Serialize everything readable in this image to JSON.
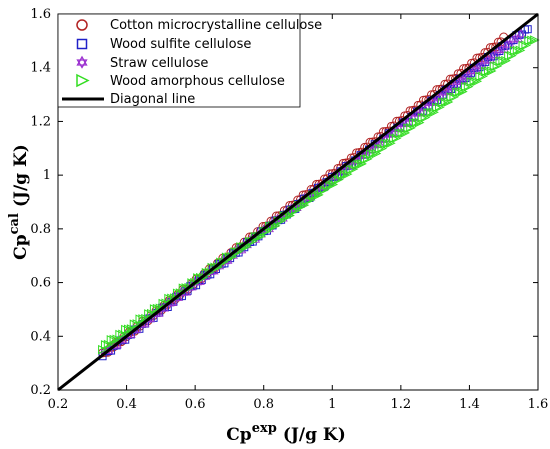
{
  "chart_data": {
    "type": "scatter",
    "title": "",
    "xlabel": {
      "base": "Cp",
      "sup": "exp",
      "unit": "(J/g K)"
    },
    "ylabel": {
      "base": "Cp",
      "sup": "cal",
      "unit": "(J/g K)"
    },
    "xlim": [
      0.2,
      1.6
    ],
    "ylim": [
      0.2,
      1.6
    ],
    "xticks": [
      "0.2",
      "0.4",
      "0.6",
      "0.8",
      "1",
      "1.2",
      "1.4",
      "1.6"
    ],
    "yticks": [
      "0.2",
      "0.4",
      "0.6",
      "0.8",
      "1",
      "1.2",
      "1.4",
      "1.6"
    ],
    "legend_position": "top-left",
    "series": [
      {
        "name": "Cotton microcrystalline cellulose",
        "marker": "circle",
        "color": "#b22222",
        "x_range": [
          0.33,
          1.5
        ],
        "slope": 1.005,
        "intercept": 0.0
      },
      {
        "name": "Wood sulfite cellulose",
        "marker": "square",
        "color": "#2020c8",
        "x_range": [
          0.33,
          1.57
        ],
        "slope": 0.982,
        "intercept": 0.005
      },
      {
        "name": "Straw cellulose",
        "marker": "hexagram",
        "color": "#9b30d0",
        "x_range": [
          0.34,
          1.55
        ],
        "slope": 0.975,
        "intercept": 0.01
      },
      {
        "name": "Wood amorphous cellulose",
        "marker": "triangle-right",
        "color": "#33dd22",
        "x_range": [
          0.33,
          1.59
        ],
        "slope": 0.915,
        "intercept": 0.055
      }
    ],
    "reference_line": {
      "name": "Diagonal line",
      "color": "#000000",
      "x": [
        0.2,
        1.6
      ],
      "y": [
        0.2,
        1.6
      ]
    }
  }
}
